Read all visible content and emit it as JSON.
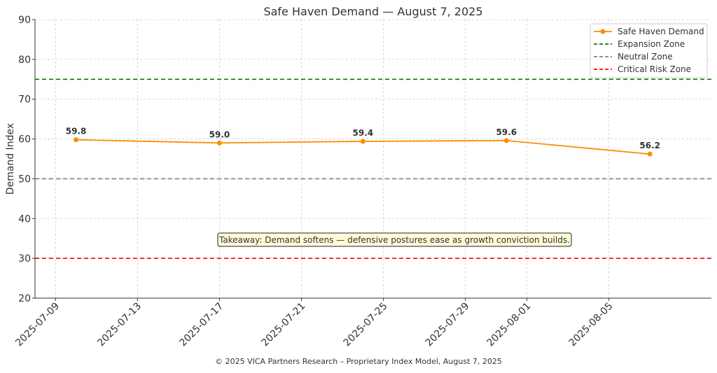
{
  "chart_data": {
    "type": "line",
    "title": "Safe Haven Demand — August 7, 2025",
    "xlabel": "",
    "ylabel": "Demand Index",
    "ylim": [
      20,
      90
    ],
    "xlim": [
      "2025-07-08",
      "2025-08-10"
    ],
    "yticks": [
      20,
      30,
      40,
      50,
      60,
      70,
      80,
      90
    ],
    "xticks": [
      "2025-07-09",
      "2025-07-13",
      "2025-07-17",
      "2025-07-21",
      "2025-07-25",
      "2025-07-29",
      "2025-08-01",
      "2025-08-05"
    ],
    "grid": true,
    "legend_position": "top-right",
    "series": [
      {
        "name": "Safe Haven Demand",
        "color": "#ff8c00",
        "x": [
          "2025-07-10",
          "2025-07-17",
          "2025-07-24",
          "2025-07-31",
          "2025-08-07"
        ],
        "values": [
          59.8,
          59.0,
          59.4,
          59.6,
          56.2
        ],
        "labels": [
          "59.8",
          "59.0",
          "59.4",
          "59.6",
          "56.2"
        ]
      }
    ],
    "reference_lines": [
      {
        "name": "Expansion Zone",
        "value": 75,
        "color": "#008000"
      },
      {
        "name": "Neutral Zone",
        "value": 50,
        "color": "#808080"
      },
      {
        "name": "Critical Risk Zone",
        "value": 30,
        "color": "#ff0000"
      }
    ],
    "annotation": "Takeaway: Demand softens — defensive postures ease as growth conviction builds."
  },
  "footer": "© 2025 VICA Partners Research – Proprietary Index Model, August 7, 2025"
}
